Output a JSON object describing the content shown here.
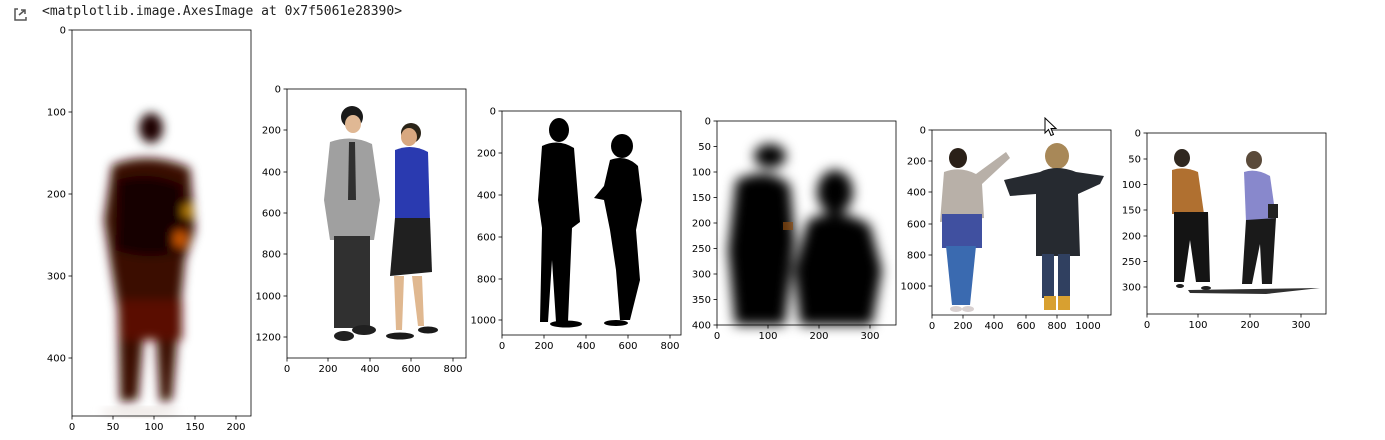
{
  "output": {
    "prompt_icon": "output-arrow-icon",
    "repr_text": "<matplotlib.image.AxesImage at 0x7f5061e28390>"
  },
  "figures": [
    {
      "image": "blurred-heatmap-silhouette",
      "xticks": [
        "0",
        "50",
        "100",
        "150",
        "200"
      ],
      "yticks": [
        "0",
        "100",
        "200",
        "300",
        "400"
      ]
    },
    {
      "image": "businessman-and-businesswoman-photo",
      "xticks": [
        "0",
        "200",
        "400",
        "600",
        "800"
      ],
      "yticks": [
        "0",
        "200",
        "400",
        "600",
        "800",
        "1000",
        "1200"
      ]
    },
    {
      "image": "two-people-black-silhouette",
      "xticks": [
        "0",
        "200",
        "400",
        "600",
        "800"
      ],
      "yticks": [
        "0",
        "200",
        "400",
        "600",
        "800",
        "1000"
      ]
    },
    {
      "image": "two-people-blurred-silhouette",
      "xticks": [
        "0",
        "100",
        "200",
        "300"
      ],
      "yticks": [
        "0",
        "50",
        "100",
        "150",
        "200",
        "250",
        "300",
        "350",
        "400"
      ]
    },
    {
      "image": "two-women-back-view-photo",
      "xticks": [
        "0",
        "200",
        "400",
        "600",
        "800",
        "1000"
      ],
      "yticks": [
        "0",
        "200",
        "400",
        "600",
        "800",
        "1000"
      ]
    },
    {
      "image": "two-women-walking-photo",
      "xticks": [
        "0",
        "100",
        "200",
        "300"
      ],
      "yticks": [
        "0",
        "50",
        "100",
        "150",
        "200",
        "250",
        "300"
      ]
    }
  ],
  "cursor": "mouse-pointer-icon"
}
